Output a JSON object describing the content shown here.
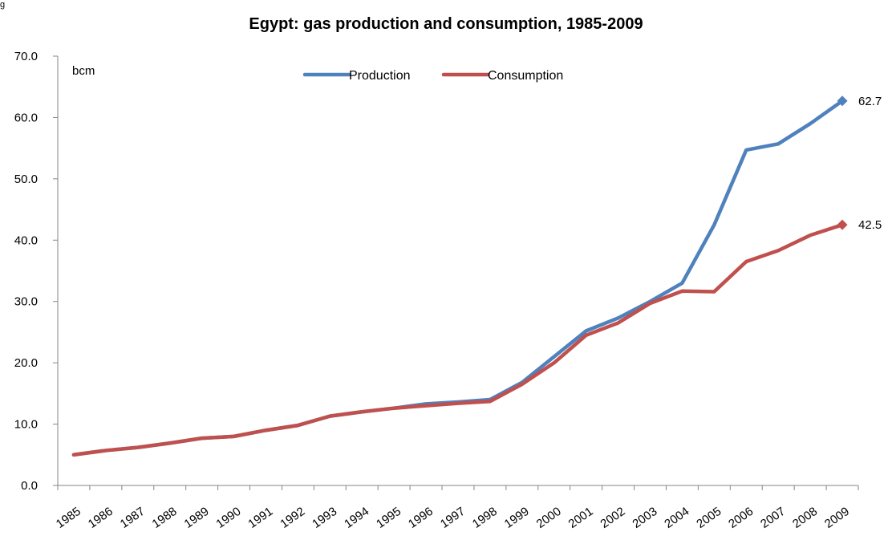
{
  "corner_mark": "g",
  "chart_data": {
    "type": "line",
    "title": "Egypt: gas production and consumption, 1985-2009",
    "unit_label": "bcm",
    "categories": [
      "1985",
      "1986",
      "1987",
      "1988",
      "1989",
      "1990",
      "1991",
      "1992",
      "1993",
      "1994",
      "1995",
      "1996",
      "1997",
      "1998",
      "1999",
      "2000",
      "2001",
      "2002",
      "2003",
      "2004",
      "2005",
      "2006",
      "2007",
      "2008",
      "2009"
    ],
    "ylim": [
      0,
      70
    ],
    "y_ticks": [
      0,
      10,
      20,
      30,
      40,
      50,
      60,
      70
    ],
    "y_tick_labels": [
      "0.0",
      "10.0",
      "20.0",
      "30.0",
      "40.0",
      "50.0",
      "60.0",
      "70.0"
    ],
    "grid": false,
    "legend_position": "top-center",
    "series": [
      {
        "name": "Production",
        "color": "#4F81BD",
        "values": [
          5.0,
          5.7,
          6.2,
          6.9,
          7.7,
          8.0,
          9.0,
          9.8,
          11.3,
          12.0,
          12.6,
          13.3,
          13.6,
          14.0,
          16.8,
          21.0,
          25.2,
          27.3,
          30.0,
          33.0,
          42.5,
          54.7,
          55.7,
          59.0,
          62.7
        ],
        "end_label": "62.7"
      },
      {
        "name": "Consumption",
        "color": "#C0504D",
        "values": [
          5.0,
          5.7,
          6.2,
          6.9,
          7.7,
          8.0,
          9.0,
          9.8,
          11.3,
          12.0,
          12.6,
          13.0,
          13.4,
          13.7,
          16.5,
          20.0,
          24.5,
          26.5,
          29.7,
          31.7,
          31.6,
          36.5,
          38.3,
          40.8,
          42.5
        ],
        "end_label": "42.5"
      }
    ]
  }
}
